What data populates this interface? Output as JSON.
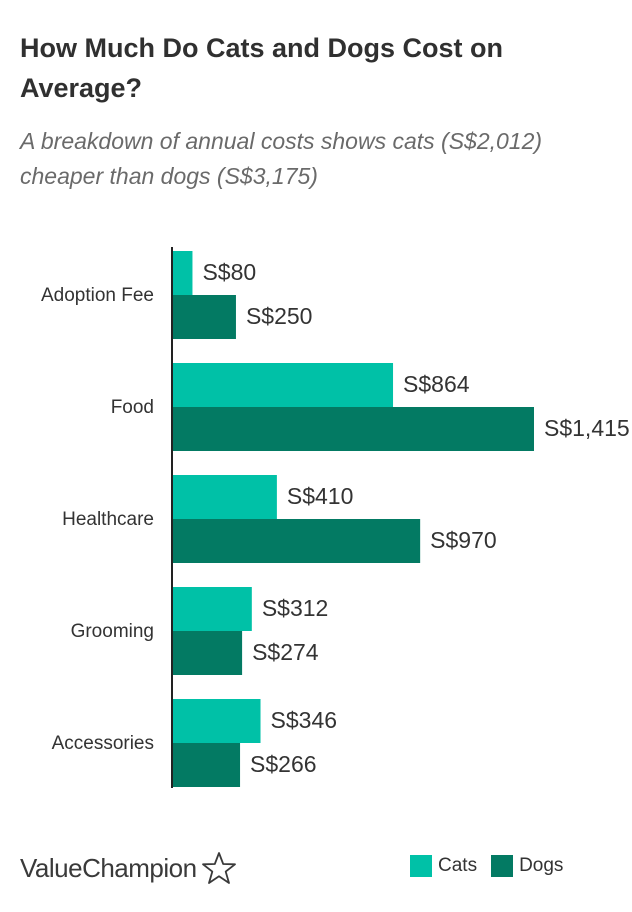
{
  "header": {
    "title": "How Much Do Cats and Dogs Cost on Average?",
    "subtitle": "A breakdown of annual costs shows cats (S$2,012) cheaper than dogs (S$3,175)"
  },
  "brand": {
    "name": "ValueChampion",
    "icon": "star-outline-icon"
  },
  "colors": {
    "cats": "#00c1a7",
    "dogs": "#037a63",
    "axis": "#222222"
  },
  "chart_data": {
    "type": "bar",
    "orientation": "horizontal",
    "categories": [
      "Adoption Fee",
      "Food",
      "Healthcare",
      "Grooming",
      "Accessories"
    ],
    "series": [
      {
        "name": "Cats",
        "values": [
          80,
          864,
          410,
          312,
          346
        ],
        "labels": [
          "S$80",
          "S$864",
          "S$410",
          "S$312",
          "S$346"
        ]
      },
      {
        "name": "Dogs",
        "values": [
          250,
          1415,
          970,
          274,
          266
        ],
        "labels": [
          "S$250",
          "S$1,415",
          "S$970",
          "S$274",
          "S$266"
        ]
      }
    ],
    "xlim": [
      0,
      1415
    ],
    "grid": false,
    "legend": "bottom-right"
  }
}
